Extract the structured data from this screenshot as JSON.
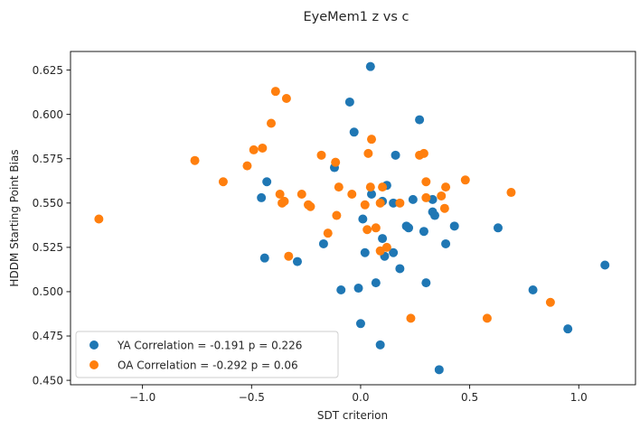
{
  "chart_data": {
    "type": "scatter",
    "title": "EyeMem1 z vs c",
    "xlabel": "SDT criterion",
    "ylabel": "HDDM Starting Point Bias",
    "xlim": [
      -1.33,
      1.26
    ],
    "ylim": [
      0.4475,
      0.6355
    ],
    "xticks": [
      -1.0,
      -0.5,
      0.0,
      0.5,
      1.0
    ],
    "xtick_labels": [
      "−1.0",
      "−0.5",
      "0.0",
      "0.5",
      "1.0"
    ],
    "yticks": [
      0.45,
      0.475,
      0.5,
      0.525,
      0.55,
      0.575,
      0.6,
      0.625
    ],
    "ytick_labels": [
      "0.450",
      "0.475",
      "0.500",
      "0.525",
      "0.550",
      "0.575",
      "0.600",
      "0.625"
    ],
    "grid": false,
    "legend_position": "lower-left",
    "series": [
      {
        "name": "YA Correlation = -0.191 p = 0.226",
        "color": "#1f77b4",
        "points": [
          [
            -0.455,
            0.553
          ],
          [
            -0.44,
            0.519
          ],
          [
            -0.43,
            0.562
          ],
          [
            -0.29,
            0.517
          ],
          [
            -0.17,
            0.527
          ],
          [
            -0.12,
            0.57
          ],
          [
            -0.09,
            0.501
          ],
          [
            -0.05,
            0.607
          ],
          [
            -0.03,
            0.59
          ],
          [
            -0.01,
            0.502
          ],
          [
            0.0,
            0.482
          ],
          [
            0.01,
            0.541
          ],
          [
            0.02,
            0.522
          ],
          [
            0.045,
            0.627
          ],
          [
            0.05,
            0.555
          ],
          [
            0.07,
            0.505
          ],
          [
            0.09,
            0.47
          ],
          [
            0.1,
            0.551
          ],
          [
            0.1,
            0.53
          ],
          [
            0.11,
            0.52
          ],
          [
            0.12,
            0.56
          ],
          [
            0.15,
            0.522
          ],
          [
            0.15,
            0.55
          ],
          [
            0.16,
            0.577
          ],
          [
            0.18,
            0.513
          ],
          [
            0.21,
            0.537
          ],
          [
            0.22,
            0.536
          ],
          [
            0.24,
            0.552
          ],
          [
            0.27,
            0.597
          ],
          [
            0.29,
            0.534
          ],
          [
            0.3,
            0.505
          ],
          [
            0.33,
            0.552
          ],
          [
            0.33,
            0.545
          ],
          [
            0.34,
            0.543
          ],
          [
            0.36,
            0.456
          ],
          [
            0.39,
            0.527
          ],
          [
            0.43,
            0.537
          ],
          [
            0.63,
            0.536
          ],
          [
            0.79,
            0.501
          ],
          [
            0.95,
            0.479
          ],
          [
            1.12,
            0.515
          ]
        ]
      },
      {
        "name": "OA Correlation = -0.292 p = 0.06",
        "color": "#ff7f0e",
        "points": [
          [
            -1.2,
            0.541
          ],
          [
            -0.76,
            0.574
          ],
          [
            -0.63,
            0.562
          ],
          [
            -0.52,
            0.571
          ],
          [
            -0.49,
            0.58
          ],
          [
            -0.45,
            0.581
          ],
          [
            -0.41,
            0.595
          ],
          [
            -0.39,
            0.613
          ],
          [
            -0.37,
            0.555
          ],
          [
            -0.36,
            0.55
          ],
          [
            -0.35,
            0.551
          ],
          [
            -0.34,
            0.609
          ],
          [
            -0.33,
            0.52
          ],
          [
            -0.27,
            0.555
          ],
          [
            -0.24,
            0.549
          ],
          [
            -0.23,
            0.548
          ],
          [
            -0.18,
            0.577
          ],
          [
            -0.15,
            0.533
          ],
          [
            -0.115,
            0.573
          ],
          [
            -0.11,
            0.543
          ],
          [
            -0.1,
            0.559
          ],
          [
            -0.04,
            0.555
          ],
          [
            0.02,
            0.549
          ],
          [
            0.03,
            0.535
          ],
          [
            0.035,
            0.578
          ],
          [
            0.045,
            0.559
          ],
          [
            0.05,
            0.586
          ],
          [
            0.07,
            0.536
          ],
          [
            0.09,
            0.55
          ],
          [
            0.09,
            0.523
          ],
          [
            0.1,
            0.559
          ],
          [
            0.12,
            0.525
          ],
          [
            0.18,
            0.55
          ],
          [
            0.23,
            0.485
          ],
          [
            0.27,
            0.577
          ],
          [
            0.29,
            0.578
          ],
          [
            0.3,
            0.562
          ],
          [
            0.3,
            0.553
          ],
          [
            0.37,
            0.554
          ],
          [
            0.385,
            0.547
          ],
          [
            0.39,
            0.559
          ],
          [
            0.48,
            0.563
          ],
          [
            0.58,
            0.485
          ],
          [
            0.69,
            0.556
          ],
          [
            0.87,
            0.494
          ]
        ]
      }
    ]
  }
}
